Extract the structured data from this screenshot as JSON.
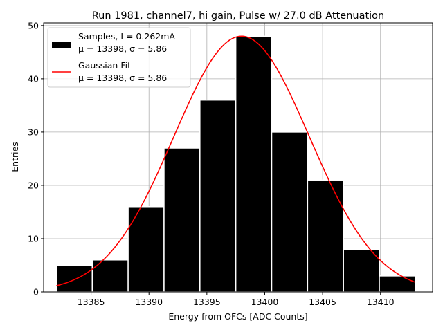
{
  "chart_data": {
    "type": "bar",
    "title": "Run 1981, channel7, hi gain, Pulse w/ 27.0 dB Attenuation",
    "xlabel": "Energy from OFCs [ADC Counts]",
    "ylabel": "Entries",
    "xlim": [
      13380.9,
      13414.5
    ],
    "ylim": [
      0,
      50.5
    ],
    "x_ticks": [
      13385,
      13390,
      13395,
      13400,
      13405,
      13410
    ],
    "y_ticks": [
      0,
      10,
      20,
      30,
      40,
      50
    ],
    "grid": true,
    "legend_position": "top-left",
    "histogram": {
      "name": "Samples, I = 0.262mA",
      "stats": "μ = 13398, σ = 5.86",
      "color": "#000000",
      "edge_color": "#ffffff",
      "bin_edges": [
        13382.0,
        13385.1,
        13388.2,
        13391.3,
        13394.4,
        13397.5,
        13400.6,
        13403.7,
        13406.8,
        13409.9,
        13413.0
      ],
      "values": [
        5,
        6,
        16,
        27,
        36,
        48,
        30,
        21,
        8,
        3
      ]
    },
    "fit": {
      "name": "Gaussian Fit",
      "stats": "μ = 13398, σ = 5.86",
      "color": "#ff0000",
      "mu": 13398,
      "sigma": 5.86,
      "amplitude": 48,
      "x_range": [
        13382,
        13413
      ]
    }
  }
}
